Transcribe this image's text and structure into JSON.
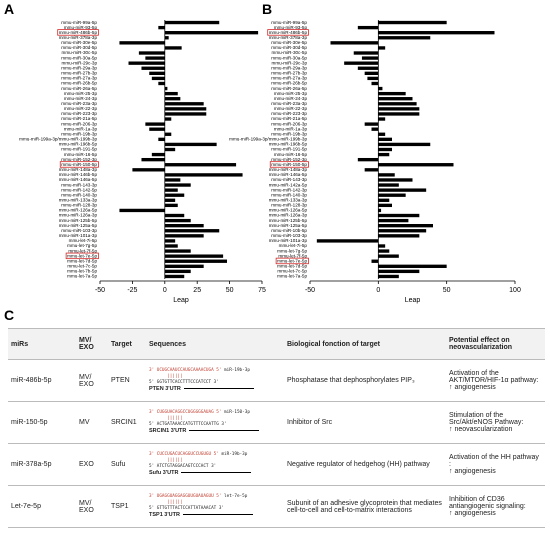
{
  "chart_data": [
    {
      "type": "hbar",
      "panel": "A",
      "xlabel": "Leap",
      "color": "#000000",
      "highlight_color": "#d62728",
      "categories": [
        "mmu-miR-99a-5p",
        "mmu-miR-93-5p",
        "mmu-miR-486b-5p",
        "mmu-miR-378a-3p",
        "mmu-miR-30e-5p",
        "mmu-miR-30d-5p",
        "mmu-miR-30c-5p",
        "mmu-miR-30a-5p",
        "mmu-miR-29c-3p",
        "mmu-miR-29a-3p",
        "mmu-miR-27b-3p",
        "mmu-miR-27a-3p",
        "mmu-miR-26b-5p",
        "mmu-miR-26a-5p",
        "mmu-miR-25-3p",
        "mmu-miR-24-3p",
        "mmu-miR-23a-3p",
        "mmu-miR-22-3p",
        "mmu-miR-223-3p",
        "mmu-miR-21a-5p",
        "mmu-miR-206-3p",
        "mmu-miR-1a-3p",
        "mmu-miR-19b-3p",
        "mmu-miR-199a-3p/mmu-miR-199b-3p",
        "mmu-miR-196b-5p",
        "mmu-miR-191-5p",
        "mmu-miR-16-5p",
        "mmu-miR-152-3p",
        "mmu-miR-150-5p",
        "mmu-miR-148a-3p",
        "mmu-miR-146b-5p",
        "mmu-miR-146a-5p",
        "mmu-miR-143-3p",
        "mmu-miR-142-5p",
        "mmu-miR-140-3p",
        "mmu-miR-133a-3p",
        "mmu-miR-128-3p",
        "mmu-miR-126a-5p",
        "mmu-miR-126a-3p",
        "mmu-miR-125b-5p",
        "mmu-miR-125a-5p",
        "mmu-miR-103-3p",
        "mmu-miR-101a-3p",
        "mmu-let-7i-5p",
        "mmu-let-7g-5p",
        "mmu-let-7f-5p",
        "mmu-let-7e-5p",
        "mmu-let-7d-5p",
        "mmu-let-7c-5p",
        "mmu-let-7b-5p",
        "mmu-let-7a-5p"
      ],
      "values": [
        42,
        -5,
        72,
        3,
        -35,
        13,
        -20,
        -15,
        -28,
        -18,
        -12,
        -10,
        -5,
        2,
        10,
        12,
        30,
        32,
        32,
        5,
        -15,
        -12,
        5,
        -5,
        40,
        8,
        -10,
        -18,
        55,
        -25,
        60,
        12,
        20,
        10,
        15,
        8,
        10,
        -35,
        15,
        20,
        30,
        42,
        30,
        8,
        10,
        20,
        45,
        48,
        30,
        20,
        15
      ],
      "highlight": [
        2,
        28,
        46
      ],
      "xlim": [
        -50,
        75
      ],
      "xticks": [
        -50,
        -25,
        0,
        25,
        50,
        75
      ]
    },
    {
      "type": "hbar",
      "panel": "B",
      "xlabel": "Leap",
      "color": "#000000",
      "highlight_color": "#d62728",
      "categories": [
        "mmu-miR-99a-5p",
        "mmu-miR-93-5p",
        "mmu-miR-486b-5p",
        "mmu-miR-378a-3p",
        "mmu-miR-30e-5p",
        "mmu-miR-30d-5p",
        "mmu-miR-30c-5p",
        "mmu-miR-30a-5p",
        "mmu-miR-29c-3p",
        "mmu-miR-29a-3p",
        "mmu-miR-27b-3p",
        "mmu-miR-27a-3p",
        "mmu-miR-26b-5p",
        "mmu-miR-26a-5p",
        "mmu-miR-25-3p",
        "mmu-miR-24-3p",
        "mmu-miR-23a-3p",
        "mmu-miR-22-3p",
        "mmu-miR-223-3p",
        "mmu-miR-21a-5p",
        "mmu-miR-206-3p",
        "mmu-miR-1a-3p",
        "mmu-miR-19b-3p",
        "mmu-miR-199a-3p/mmu-miR-199b-3p",
        "mmu-miR-196b-5p",
        "mmu-miR-191-5p",
        "mmu-miR-16-5p",
        "mmu-miR-152-3p",
        "mmu-miR-150-5p",
        "mmu-miR-148a-3p",
        "mmu-miR-146a-5p",
        "mmu-miR-143-3p",
        "mmu-miR-142a-5p",
        "mmu-miR-142-3p",
        "mmu-miR-140-3p",
        "mmu-miR-133a-3p",
        "mmu-miR-128-3p",
        "mmu-miR-126a-5p",
        "mmu-miR-126a-3p",
        "mmu-miR-125b-5p",
        "mmu-miR-125a-5p",
        "mmu-miR-10b-5p",
        "mmu-miR-103-3p",
        "mmu-miR-101a-3p",
        "mmu-let-7i-5p",
        "mmu-let-7g-5p",
        "mmu-let-7f-5p",
        "mmu-let-7e-5p",
        "mmu-let-7d-5p",
        "mmu-let-7c-5p",
        "mmu-let-7a-5p"
      ],
      "values": [
        50,
        -15,
        85,
        38,
        -35,
        5,
        -18,
        -12,
        -25,
        -15,
        -10,
        -8,
        -5,
        3,
        20,
        25,
        28,
        30,
        30,
        5,
        -10,
        -5,
        5,
        10,
        38,
        10,
        8,
        -15,
        55,
        -10,
        12,
        25,
        15,
        35,
        20,
        8,
        10,
        2,
        30,
        22,
        40,
        35,
        30,
        -45,
        5,
        8,
        15,
        -5,
        50,
        30,
        15
      ],
      "highlight": [
        2,
        28,
        47
      ],
      "xlim": [
        -50,
        100
      ],
      "xticks": [
        -50,
        0,
        50,
        100
      ]
    }
  ],
  "panel_c": "C",
  "table": {
    "columns": [
      "miRs",
      "MV/\nEXO",
      "Target",
      "Sequences",
      "Biological fonction of target",
      "Potential effect on neovascularization"
    ],
    "rows": [
      {
        "mir": "miR-486b-5p",
        "vesicle": "MV/\nEXO",
        "target": "PTEN",
        "sequence": {
          "mirna": "3' UCUGCAAUCCAUGCAAAACUGA 5'",
          "mirna_name": "miR-19b-3p",
          "utr": "5' GGTGTTCACCTTTCCCATCCT 3'",
          "utr_label": "PTEN 3'UTR"
        },
        "function": "Phosphatase that dephosphorylates PIP₃",
        "effect": "Activation of the AKT/MTOR/HIF-1α pathway:",
        "outcome": "↑ angiogenesis"
      },
      {
        "mir": "miR-150-5p",
        "vesicle": "MV",
        "target": "SRCIN1",
        "sequence": {
          "mirna": "3' CUGGUACAGGCCUGGGGGAUAG 5'",
          "mirna_name": "miR-150-3p",
          "utr": "5' ACTGATAAACCATGTTTCCAATTG 3'",
          "utr_label": "SRCIN1 3'UTR"
        },
        "function": "Inhibitor of Src",
        "effect": "Stimulation of the Src/Akt/eNOS Pathway:",
        "outcome": "↑ neovascularization"
      },
      {
        "mir": "miR-378a-5p",
        "vesicle": "EXO",
        "target": "Sufu",
        "sequence": {
          "mirna": "3' CUCCUGACUCAGGUCCUGUGU 5'",
          "mirna_name": "miR-19b-3p",
          "utr": "5' ATCTGTAGGACAGTCCCACT 3'",
          "utr_label": "Sufu 3'UTR"
        },
        "function": "Negative regulator of hedgehog (HH) pathway",
        "effect": "Activation of the HH pathway :",
        "outcome": "↑ angiogenesis"
      },
      {
        "mir": "Let-7e-5p",
        "vesicle": "MV/\nEXO",
        "target": "TSP1",
        "sequence": {
          "mirna": "3' UGAGGUAGGAGGUUGUAUAGUU 5'",
          "mirna_name": "let-7e-5p",
          "utr": "5' GTTGTTTACTCCATTATAAACAT 3'",
          "utr_label": "TSP1 3'UTR"
        },
        "function": "Subunit of an adhesive glycoprotein that mediates cell-to-cell and cell-to-matrix interactions",
        "effect": "Inhibition of CD36 antiangiogenic signaling:",
        "outcome": "↑ angiogenesis"
      }
    ]
  }
}
